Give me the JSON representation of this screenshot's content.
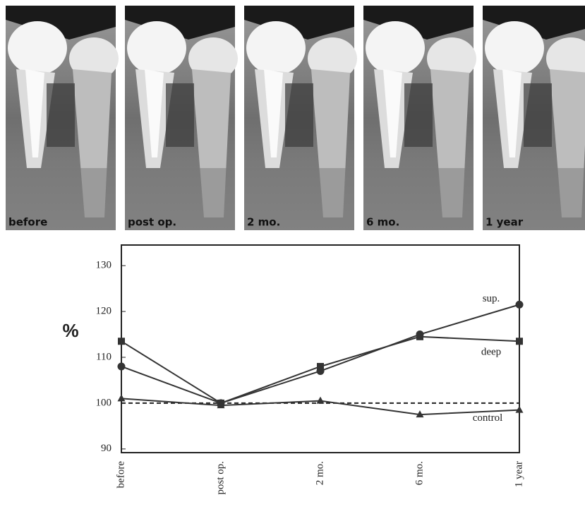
{
  "panels": [
    "before",
    "post op.",
    "2 mo.",
    "6 mo.",
    "1 year"
  ],
  "chart_data": {
    "type": "line",
    "ylabel": "%",
    "categories": [
      "before",
      "post op.",
      "2 mo.",
      "6 mo.",
      "1 year"
    ],
    "series": [
      {
        "name": "sup.",
        "color": "#333333",
        "marker": "circle",
        "values": [
          108,
          100,
          107,
          115,
          121.5
        ]
      },
      {
        "name": "deep",
        "color": "#333333",
        "marker": "square",
        "values": [
          113.5,
          100,
          108,
          114.5,
          113.5
        ]
      },
      {
        "name": "control",
        "color": "#333333",
        "marker": "triangle",
        "values": [
          101,
          99.5,
          100.5,
          97.5,
          98.5
        ]
      }
    ],
    "reference_line": 100,
    "ylim": [
      89.2,
      134.5
    ],
    "yticks": [
      90,
      100,
      110,
      120,
      130
    ]
  }
}
